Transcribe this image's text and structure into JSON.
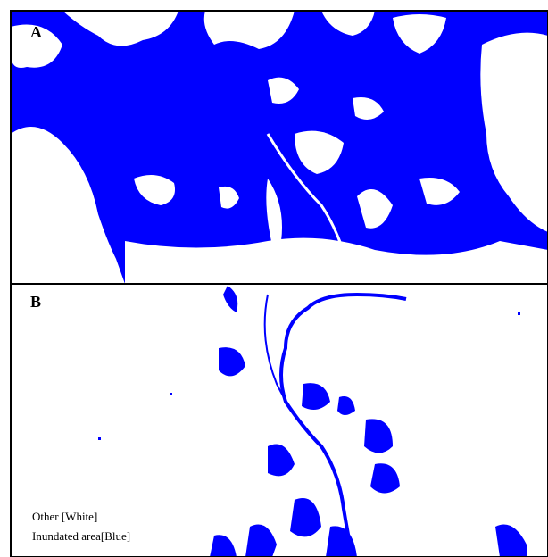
{
  "panels": [
    {
      "label": "A"
    },
    {
      "label": "B"
    }
  ],
  "legend": {
    "items": [
      "Other [White]",
      "Inundated area[Blue]"
    ]
  }
}
